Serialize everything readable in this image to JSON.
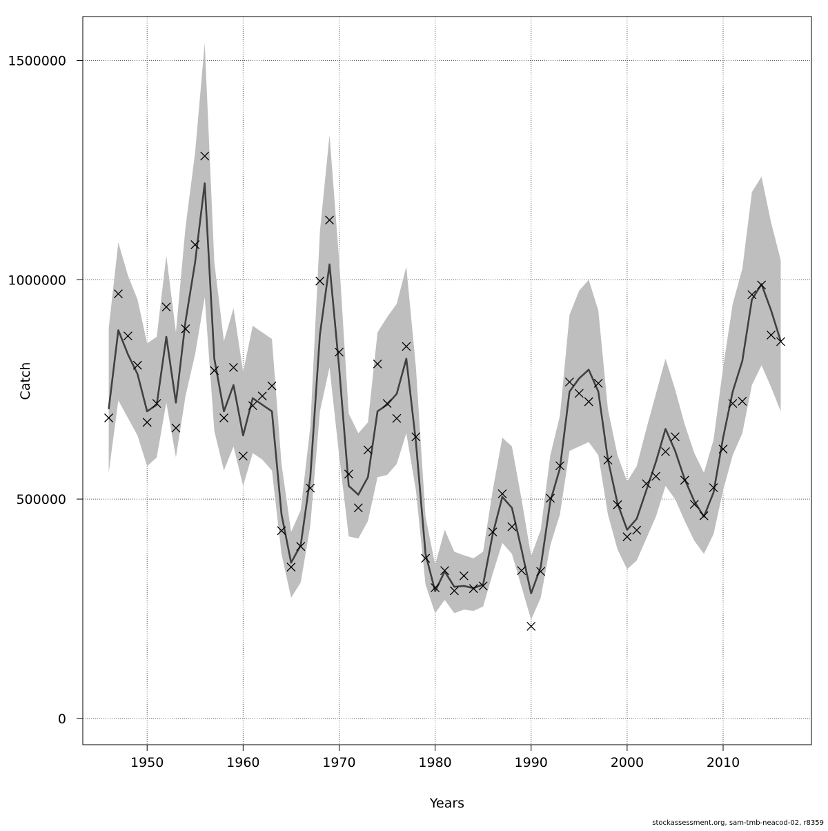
{
  "chart_data": {
    "type": "line",
    "title": "",
    "xlabel": "Years",
    "ylabel": "Catch",
    "xlim": [
      1943.3,
      2019.2
    ],
    "ylim": [
      -60000,
      1600000
    ],
    "x_ticks": [
      1950,
      1960,
      1970,
      1980,
      1990,
      2000,
      2010
    ],
    "y_ticks": [
      0,
      500000,
      1000000,
      1500000
    ],
    "grid": true,
    "series": [
      {
        "style": "band",
        "x": [
          1946,
          1947,
          1948,
          1949,
          1950,
          1951,
          1952,
          1953,
          1954,
          1955,
          1956,
          1957,
          1958,
          1959,
          1960,
          1961,
          1962,
          1963,
          1964,
          1965,
          1966,
          1967,
          1968,
          1969,
          1970,
          1971,
          1972,
          1973,
          1974,
          1975,
          1976,
          1977,
          1978,
          1979,
          1980,
          1981,
          1982,
          1983,
          1984,
          1985,
          1986,
          1987,
          1988,
          1989,
          1990,
          1991,
          1992,
          1993,
          1994,
          1995,
          1996,
          1997,
          1998,
          1999,
          2000,
          2001,
          2002,
          2003,
          2004,
          2005,
          2006,
          2007,
          2008,
          2009,
          2010,
          2011,
          2012,
          2013,
          2014,
          2015,
          2016
        ],
        "lower": [
          560000,
          725000,
          685000,
          645000,
          575000,
          595000,
          720000,
          595000,
          735000,
          830000,
          960000,
          655000,
          565000,
          620000,
          530000,
          605000,
          590000,
          565000,
          375000,
          275000,
          310000,
          440000,
          700000,
          800000,
          600000,
          415000,
          410000,
          450000,
          550000,
          555000,
          580000,
          650000,
          520000,
          305000,
          240000,
          270000,
          240000,
          248000,
          245000,
          255000,
          330000,
          400000,
          375000,
          300000,
          225000,
          275000,
          395000,
          465000,
          610000,
          620000,
          630000,
          600000,
          465000,
          385000,
          340000,
          360000,
          410000,
          460000,
          530000,
          500000,
          450000,
          405000,
          375000,
          420000,
          520000,
          600000,
          650000,
          760000,
          805000,
          755000,
          700000
        ],
        "upper": [
          890000,
          1085000,
          1010000,
          955000,
          855000,
          870000,
          1055000,
          880000,
          1120000,
          1290000,
          1540000,
          1040000,
          860000,
          935000,
          790000,
          895000,
          880000,
          865000,
          580000,
          425000,
          475000,
          665000,
          1110000,
          1330000,
          1045000,
          695000,
          650000,
          675000,
          880000,
          915000,
          945000,
          1030000,
          800000,
          460000,
          350000,
          430000,
          380000,
          372000,
          365000,
          380000,
          520000,
          640000,
          620000,
          500000,
          370000,
          430000,
          600000,
          690000,
          920000,
          975000,
          1000000,
          930000,
          705000,
          600000,
          540000,
          575000,
          660000,
          740000,
          820000,
          750000,
          670000,
          605000,
          560000,
          635000,
          800000,
          945000,
          1025000,
          1200000,
          1235000,
          1130000,
          1045000
        ]
      },
      {
        "style": "line",
        "x": [
          1946,
          1947,
          1948,
          1949,
          1950,
          1951,
          1952,
          1953,
          1954,
          1955,
          1956,
          1957,
          1958,
          1959,
          1960,
          1961,
          1962,
          1963,
          1964,
          1965,
          1966,
          1967,
          1968,
          1969,
          1970,
          1971,
          1972,
          1973,
          1974,
          1975,
          1976,
          1977,
          1978,
          1979,
          1980,
          1981,
          1982,
          1983,
          1984,
          1985,
          1986,
          1987,
          1988,
          1989,
          1990,
          1991,
          1992,
          1993,
          1994,
          1995,
          1996,
          1997,
          1998,
          1999,
          2000,
          2001,
          2002,
          2003,
          2004,
          2005,
          2006,
          2007,
          2008,
          2009,
          2010,
          2011,
          2012,
          2013,
          2014,
          2015,
          2016
        ],
        "values": [
          705000,
          885000,
          830000,
          785000,
          700000,
          715000,
          870000,
          720000,
          905000,
          1040000,
          1220000,
          820000,
          700000,
          760000,
          645000,
          730000,
          715000,
          700000,
          465000,
          355000,
          395000,
          550000,
          875000,
          1035000,
          800000,
          530000,
          510000,
          550000,
          700000,
          715000,
          740000,
          820000,
          630000,
          375000,
          290000,
          335000,
          300000,
          302000,
          297000,
          305000,
          420000,
          505000,
          480000,
          385000,
          285000,
          345000,
          495000,
          570000,
          745000,
          775000,
          795000,
          745000,
          590000,
          490000,
          430000,
          455000,
          520000,
          585000,
          660000,
          610000,
          545000,
          495000,
          460000,
          515000,
          640000,
          745000,
          815000,
          955000,
          990000,
          930000,
          860000
        ]
      },
      {
        "style": "points",
        "marker": "x",
        "x": [
          1946,
          1947,
          1948,
          1949,
          1950,
          1951,
          1952,
          1953,
          1954,
          1955,
          1956,
          1957,
          1958,
          1959,
          1960,
          1961,
          1962,
          1963,
          1964,
          1965,
          1966,
          1967,
          1968,
          1969,
          1970,
          1971,
          1972,
          1973,
          1974,
          1975,
          1976,
          1977,
          1978,
          1979,
          1980,
          1981,
          1982,
          1983,
          1984,
          1985,
          1986,
          1987,
          1988,
          1989,
          1990,
          1991,
          1992,
          1993,
          1994,
          1995,
          1996,
          1997,
          1998,
          1999,
          2000,
          2001,
          2002,
          2003,
          2004,
          2005,
          2006,
          2007,
          2008,
          2009,
          2010,
          2011,
          2012,
          2013,
          2014,
          2015,
          2016
        ],
        "values": [
          685000,
          968000,
          872000,
          805000,
          675000,
          718000,
          938000,
          662000,
          888000,
          1080000,
          1282000,
          793000,
          685000,
          800000,
          598000,
          713000,
          735000,
          758000,
          428000,
          345000,
          392000,
          525000,
          997000,
          1136000,
          835000,
          557000,
          480000,
          612000,
          808000,
          718000,
          684000,
          848000,
          642000,
          365000,
          298000,
          337000,
          291000,
          325000,
          296000,
          302000,
          425000,
          512000,
          437000,
          337000,
          210000,
          335000,
          502000,
          576000,
          767000,
          741000,
          722000,
          764000,
          589000,
          487000,
          414000,
          429000,
          535000,
          552000,
          608000,
          642000,
          543000,
          488000,
          462000,
          526000,
          614000,
          718000,
          723000,
          966000,
          988000,
          874000,
          859000
        ]
      }
    ]
  },
  "footer": "stockassessment.org, sam-tmb-neacod-02, r8359"
}
